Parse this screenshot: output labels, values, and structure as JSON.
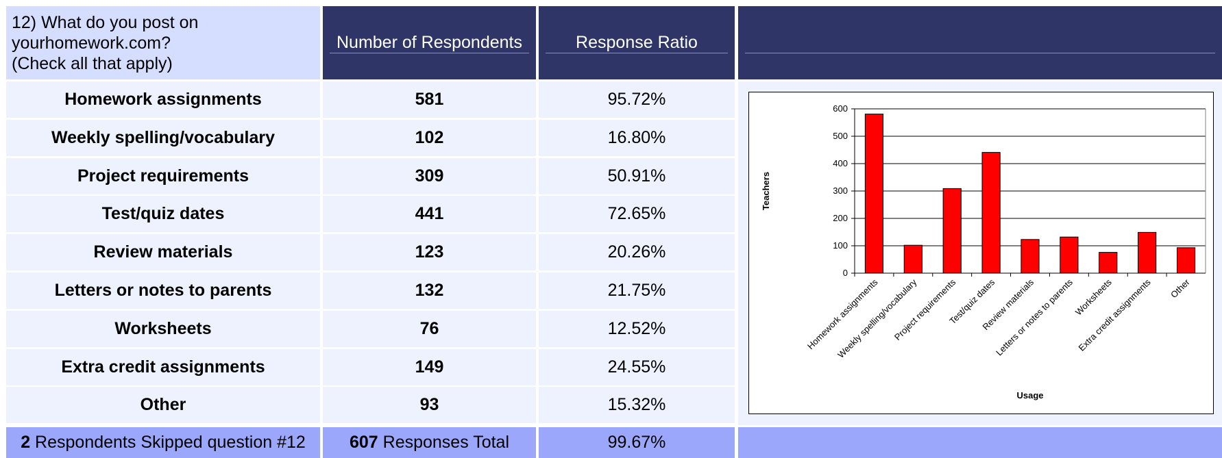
{
  "header": {
    "question": [
      "12) What do you post on",
      "yourhomework.com?",
      "(Check all that apply)"
    ],
    "columns": [
      "Number of Respondents",
      "Response Ratio"
    ]
  },
  "table": {
    "rows": [
      [
        "Homework assignments",
        581,
        "95.72%"
      ],
      [
        "Weekly spelling/vocabulary",
        102,
        "16.80%"
      ],
      [
        "Project requirements",
        309,
        "50.91%"
      ],
      [
        "Test/quiz dates",
        441,
        "72.65%"
      ],
      [
        "Review materials",
        123,
        "20.26%"
      ],
      [
        "Letters or notes to parents",
        132,
        "21.75%"
      ],
      [
        "Worksheets",
        76,
        "12.52%"
      ],
      [
        "Extra credit assignments",
        149,
        "24.55%"
      ],
      [
        "Other",
        93,
        "15.32%"
      ]
    ]
  },
  "footer": {
    "skipped": {
      "count": 2,
      "text": "Respondents Skipped question #12"
    },
    "total": {
      "count": 607,
      "text": "Responses Total"
    },
    "ratio": "99.67%"
  },
  "chart_data": {
    "type": "bar",
    "x_label": "Usage",
    "y_label": "Teachers",
    "categories": [
      "Homework assignments",
      "Weekly spelling/vocabulary",
      "Project requirements",
      "Test/quiz dates",
      "Review materials",
      "Letters or notes to parents",
      "Worksheets",
      "Extra credit assignments",
      "Other"
    ],
    "values": [
      581,
      102,
      309,
      441,
      123,
      132,
      76,
      149,
      93
    ],
    "color": "#ff0000",
    "ylim": [
      0,
      600
    ],
    "yticks": [
      0,
      100,
      200,
      300,
      400,
      500,
      600
    ],
    "grid": true
  }
}
